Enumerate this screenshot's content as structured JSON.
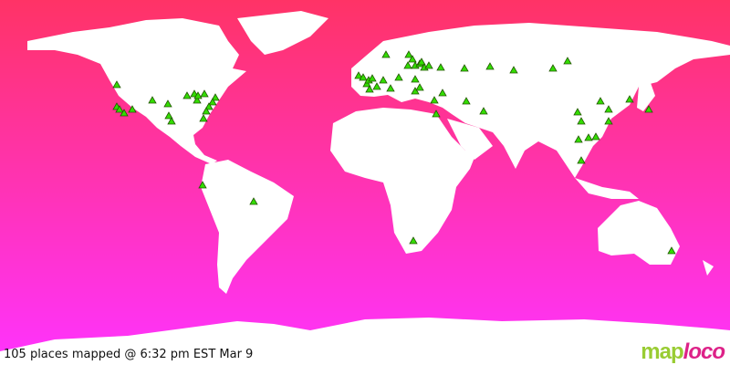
{
  "map": {
    "projection": "world",
    "background_gradient": [
      "#ff3366",
      "#ff33ff"
    ],
    "land_color": "#ffffff",
    "marker_color": "#33dd00",
    "marker_shape": "triangle"
  },
  "caption": "105 places mapped @ 6:32 pm EST Mar 9",
  "logo": {
    "part1": "map",
    "part2": "loco"
  }
}
